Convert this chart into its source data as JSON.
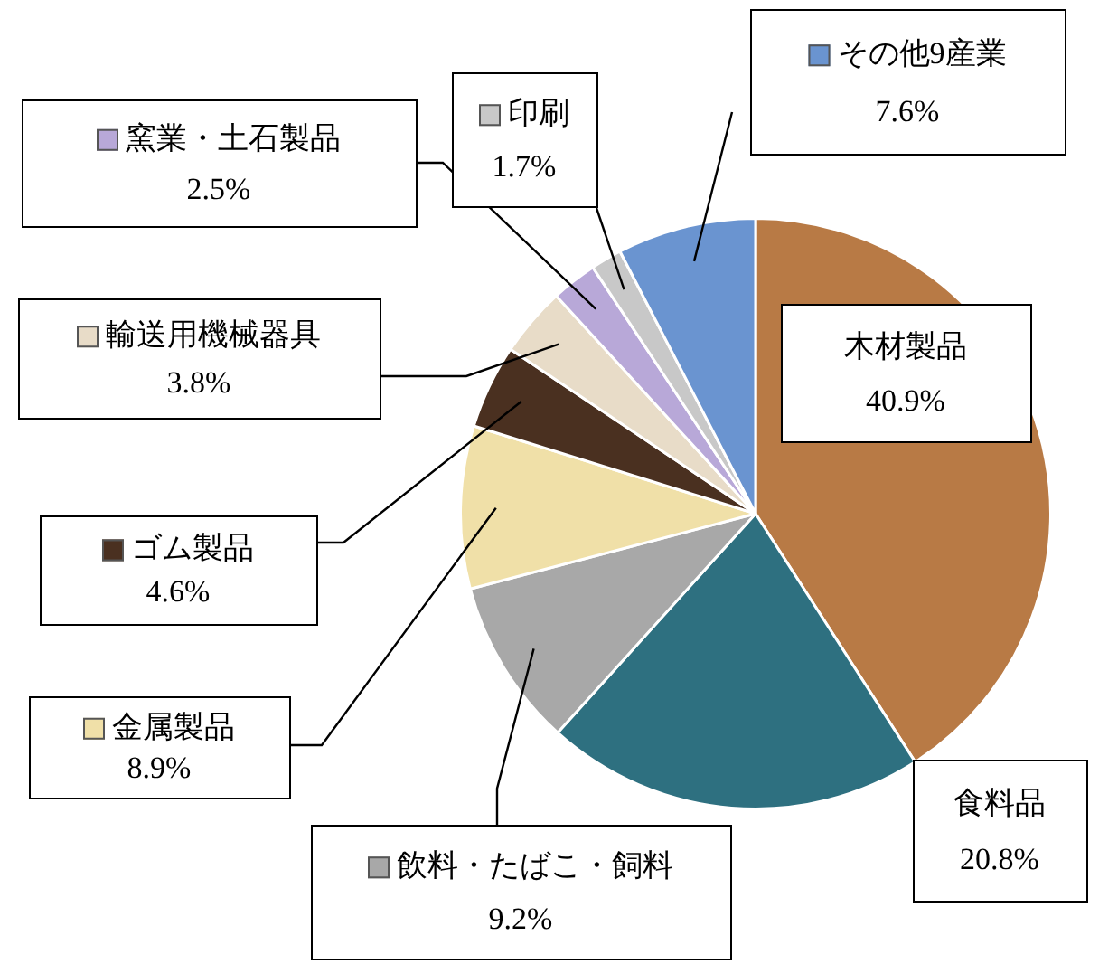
{
  "chart_data": {
    "type": "pie",
    "categories": [
      "木材製品",
      "食料品",
      "飲料・たばこ・飼料",
      "金属製品",
      "ゴム製品",
      "輸送用機械器具",
      "窯業・土石製品",
      "印刷",
      "その他9産業"
    ],
    "values": [
      40.9,
      20.8,
      9.2,
      8.9,
      4.6,
      3.8,
      2.5,
      1.7,
      7.6
    ],
    "value_labels": [
      "40.9%",
      "20.8%",
      "9.2%",
      "8.9%",
      "4.6%",
      "3.8%",
      "2.5%",
      "1.7%",
      "7.6%"
    ],
    "colors": [
      "#b87a45",
      "#2e7080",
      "#a8a8a8",
      "#f0e0a8",
      "#4a3020",
      "#e8dcc8",
      "#b8a8d8",
      "#c8c8c8",
      "#6a94d0"
    ],
    "legend": "left"
  }
}
